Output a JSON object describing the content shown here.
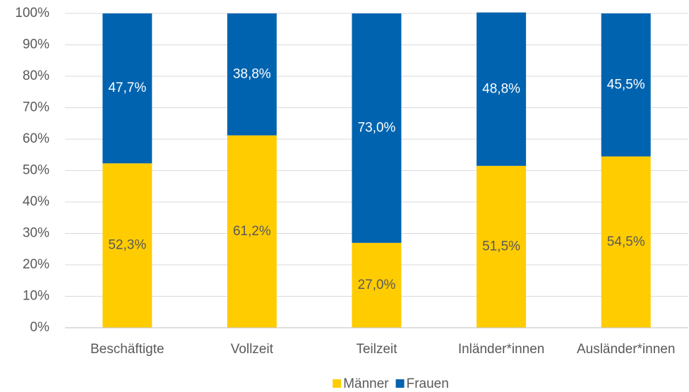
{
  "chart_data": {
    "type": "stacked_bar",
    "categories": [
      "Beschäftigte",
      "Vollzeit",
      "Teilzeit",
      "Inländer*innen",
      "Ausländer*innen"
    ],
    "series": [
      {
        "name": "Männer",
        "color": "#ffcc00",
        "values": [
          52.3,
          61.2,
          27.0,
          51.5,
          54.5
        ],
        "value_labels": [
          "52,3%",
          "61,2%",
          "27,0%",
          "51,5%",
          "54,5%"
        ]
      },
      {
        "name": "Frauen",
        "color": "#0063af",
        "values": [
          47.7,
          38.8,
          73.0,
          48.8,
          45.5
        ],
        "value_labels": [
          "47,7%",
          "38,8%",
          "73,0%",
          "48,8%",
          "45,5%"
        ]
      }
    ],
    "ylim": [
      0,
      100
    ],
    "yticks": [
      {
        "value": 0,
        "label": "0%"
      },
      {
        "value": 10,
        "label": "10%"
      },
      {
        "value": 20,
        "label": "20%"
      },
      {
        "value": 30,
        "label": "30%"
      },
      {
        "value": 40,
        "label": "40%"
      },
      {
        "value": 50,
        "label": "50%"
      },
      {
        "value": 60,
        "label": "60%"
      },
      {
        "value": 70,
        "label": "70%"
      },
      {
        "value": 80,
        "label": "80%"
      },
      {
        "value": 90,
        "label": "90%"
      },
      {
        "value": 100,
        "label": "100%"
      }
    ],
    "grid": true,
    "legend": "bottom"
  }
}
